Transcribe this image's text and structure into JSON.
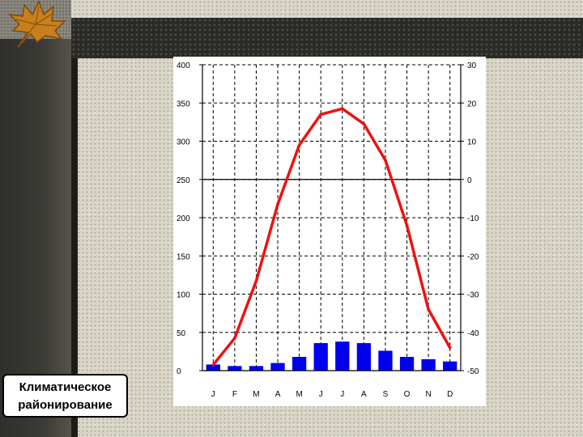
{
  "slide": {
    "title": "",
    "label_line1": "Климатическое",
    "label_line2": "районирование"
  },
  "chart_data": {
    "type": "bar",
    "title": "",
    "xlabel": "",
    "ylabel": "",
    "categories": [
      "J",
      "F",
      "M",
      "A",
      "M",
      "J",
      "J",
      "A",
      "S",
      "O",
      "N",
      "D"
    ],
    "y_left_ticks": [
      "400",
      "350",
      "300",
      "250",
      "200",
      "150",
      "100",
      "50",
      "0"
    ],
    "y_right_ticks": [
      "30",
      "20",
      "10",
      "0",
      "-10",
      "-20",
      "-30",
      "-40",
      "-50"
    ],
    "ylim_left": [
      0,
      400
    ],
    "ylim_right": [
      -50,
      30
    ],
    "grid": true,
    "series": [
      {
        "type": "bar",
        "axis": "left",
        "color": "#0000ee",
        "values": [
          8,
          6,
          6,
          10,
          18,
          36,
          38,
          36,
          26,
          18,
          15,
          12
        ]
      },
      {
        "type": "line",
        "axis": "right",
        "color": "#ee1111",
        "values": [
          -48.5,
          -41.5,
          -26.5,
          -6.5,
          9,
          17,
          18.5,
          14.5,
          5,
          -12,
          -34,
          -44
        ]
      }
    ]
  }
}
